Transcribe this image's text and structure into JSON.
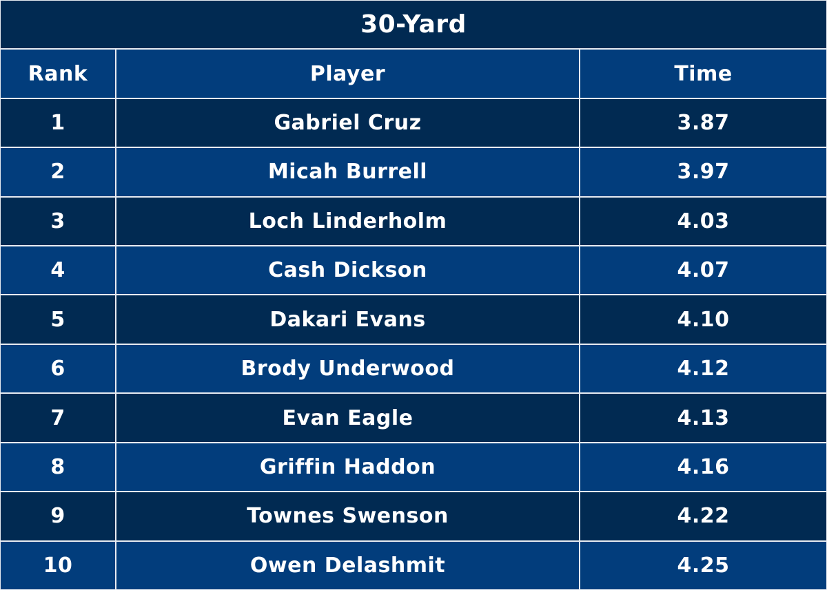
{
  "table": {
    "title": "30-Yard",
    "header": [
      "Rank",
      "Player",
      "Time"
    ],
    "rows": [
      [
        1,
        "Gabriel Cruz",
        "3.87"
      ],
      [
        2,
        "Micah Burrell",
        "3.97"
      ],
      [
        3,
        "Loch Linderholm",
        "4.03"
      ],
      [
        4,
        "Cash Dickson",
        "4.07"
      ],
      [
        5,
        "Dakari Evans",
        "4.10"
      ],
      [
        6,
        "Brody Underwood",
        "4.12"
      ],
      [
        7,
        "Evan Eagle",
        "4.13"
      ],
      [
        8,
        "Griffin Haddon",
        "4.16"
      ],
      [
        9,
        "Townes Swenson",
        "4.22"
      ],
      [
        10,
        "Owen Delashmit",
        "4.25"
      ]
    ]
  }
}
